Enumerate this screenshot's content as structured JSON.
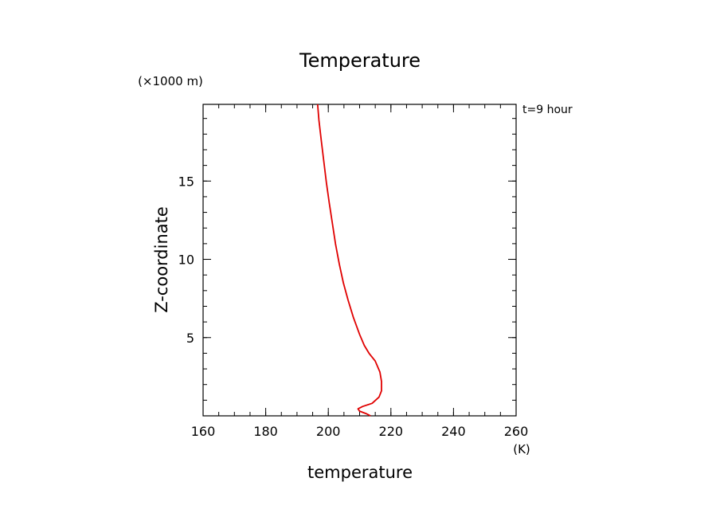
{
  "chart_data": {
    "type": "line",
    "title": "Temperature",
    "xlabel": "temperature",
    "xunit": "(K)",
    "ylabel": "Z-coordinate",
    "yunit": "(×1000 m)",
    "annotation": "t=9 hour",
    "xlim": [
      160,
      260
    ],
    "ylim": [
      0,
      19.9
    ],
    "xticks": [
      160,
      180,
      200,
      220,
      240,
      260
    ],
    "yticks": [
      5,
      10,
      15
    ],
    "x_minor_step": 5,
    "y_minor_step": 1,
    "grid": false,
    "line_color": "#e00000",
    "series": [
      {
        "x": [
          213.5,
          212.0,
          210.0,
          209.5,
          211.0,
          214.0,
          216.2,
          217.0,
          217.0,
          216.5,
          215.0,
          213.0,
          211.5,
          210.0,
          208.0,
          206.3,
          204.8,
          203.5,
          202.3,
          201.3,
          200.3,
          199.4,
          198.6,
          197.8,
          197.0,
          196.6
        ],
        "y": [
          0.0,
          0.15,
          0.3,
          0.45,
          0.6,
          0.8,
          1.2,
          1.6,
          2.2,
          2.8,
          3.5,
          4.0,
          4.5,
          5.2,
          6.3,
          7.4,
          8.5,
          9.7,
          11.0,
          12.3,
          13.6,
          14.9,
          16.2,
          17.5,
          18.9,
          19.9
        ]
      }
    ]
  }
}
